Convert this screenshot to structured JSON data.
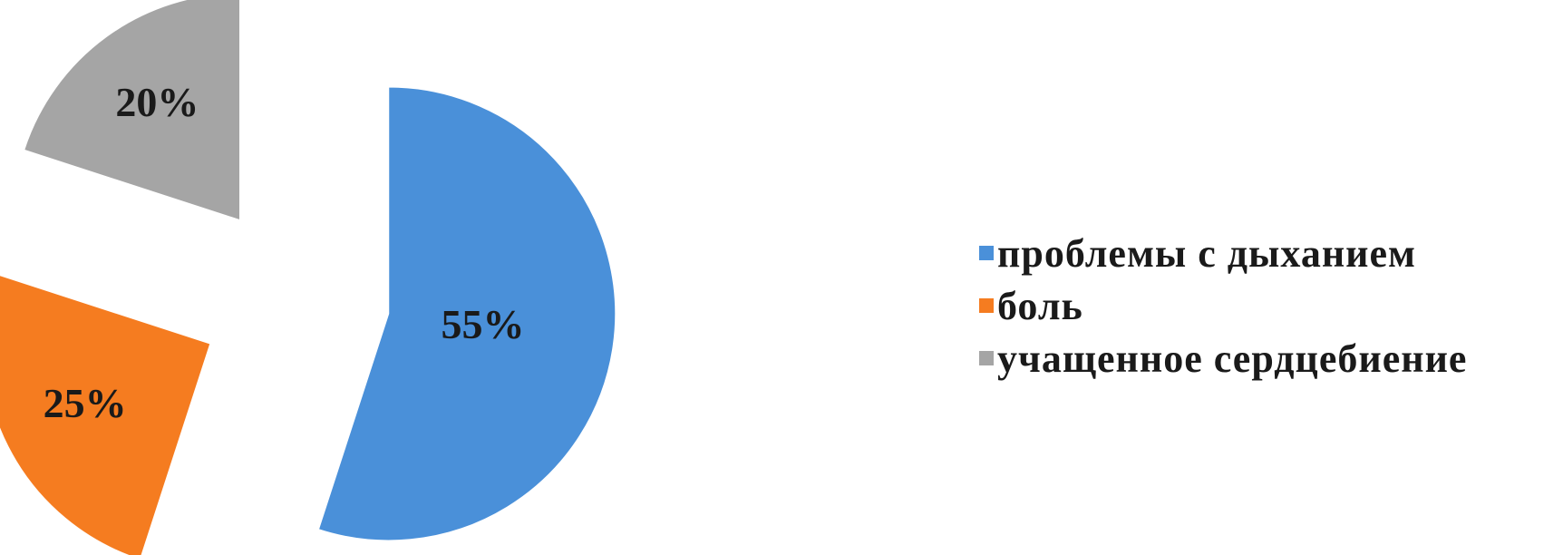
{
  "chart_data": {
    "type": "pie",
    "exploded": true,
    "slices": [
      {
        "label": "проблемы с дыханием",
        "value": 55,
        "data_label": "55%",
        "color": "#4a90d9"
      },
      {
        "label": "боль",
        "value": 25,
        "data_label": "25%",
        "color": "#f57c20"
      },
      {
        "label": "учащенное сердцебиение",
        "value": 20,
        "data_label": "20%",
        "color": "#a5a5a5"
      }
    ],
    "legend_position": "right",
    "title": ""
  }
}
